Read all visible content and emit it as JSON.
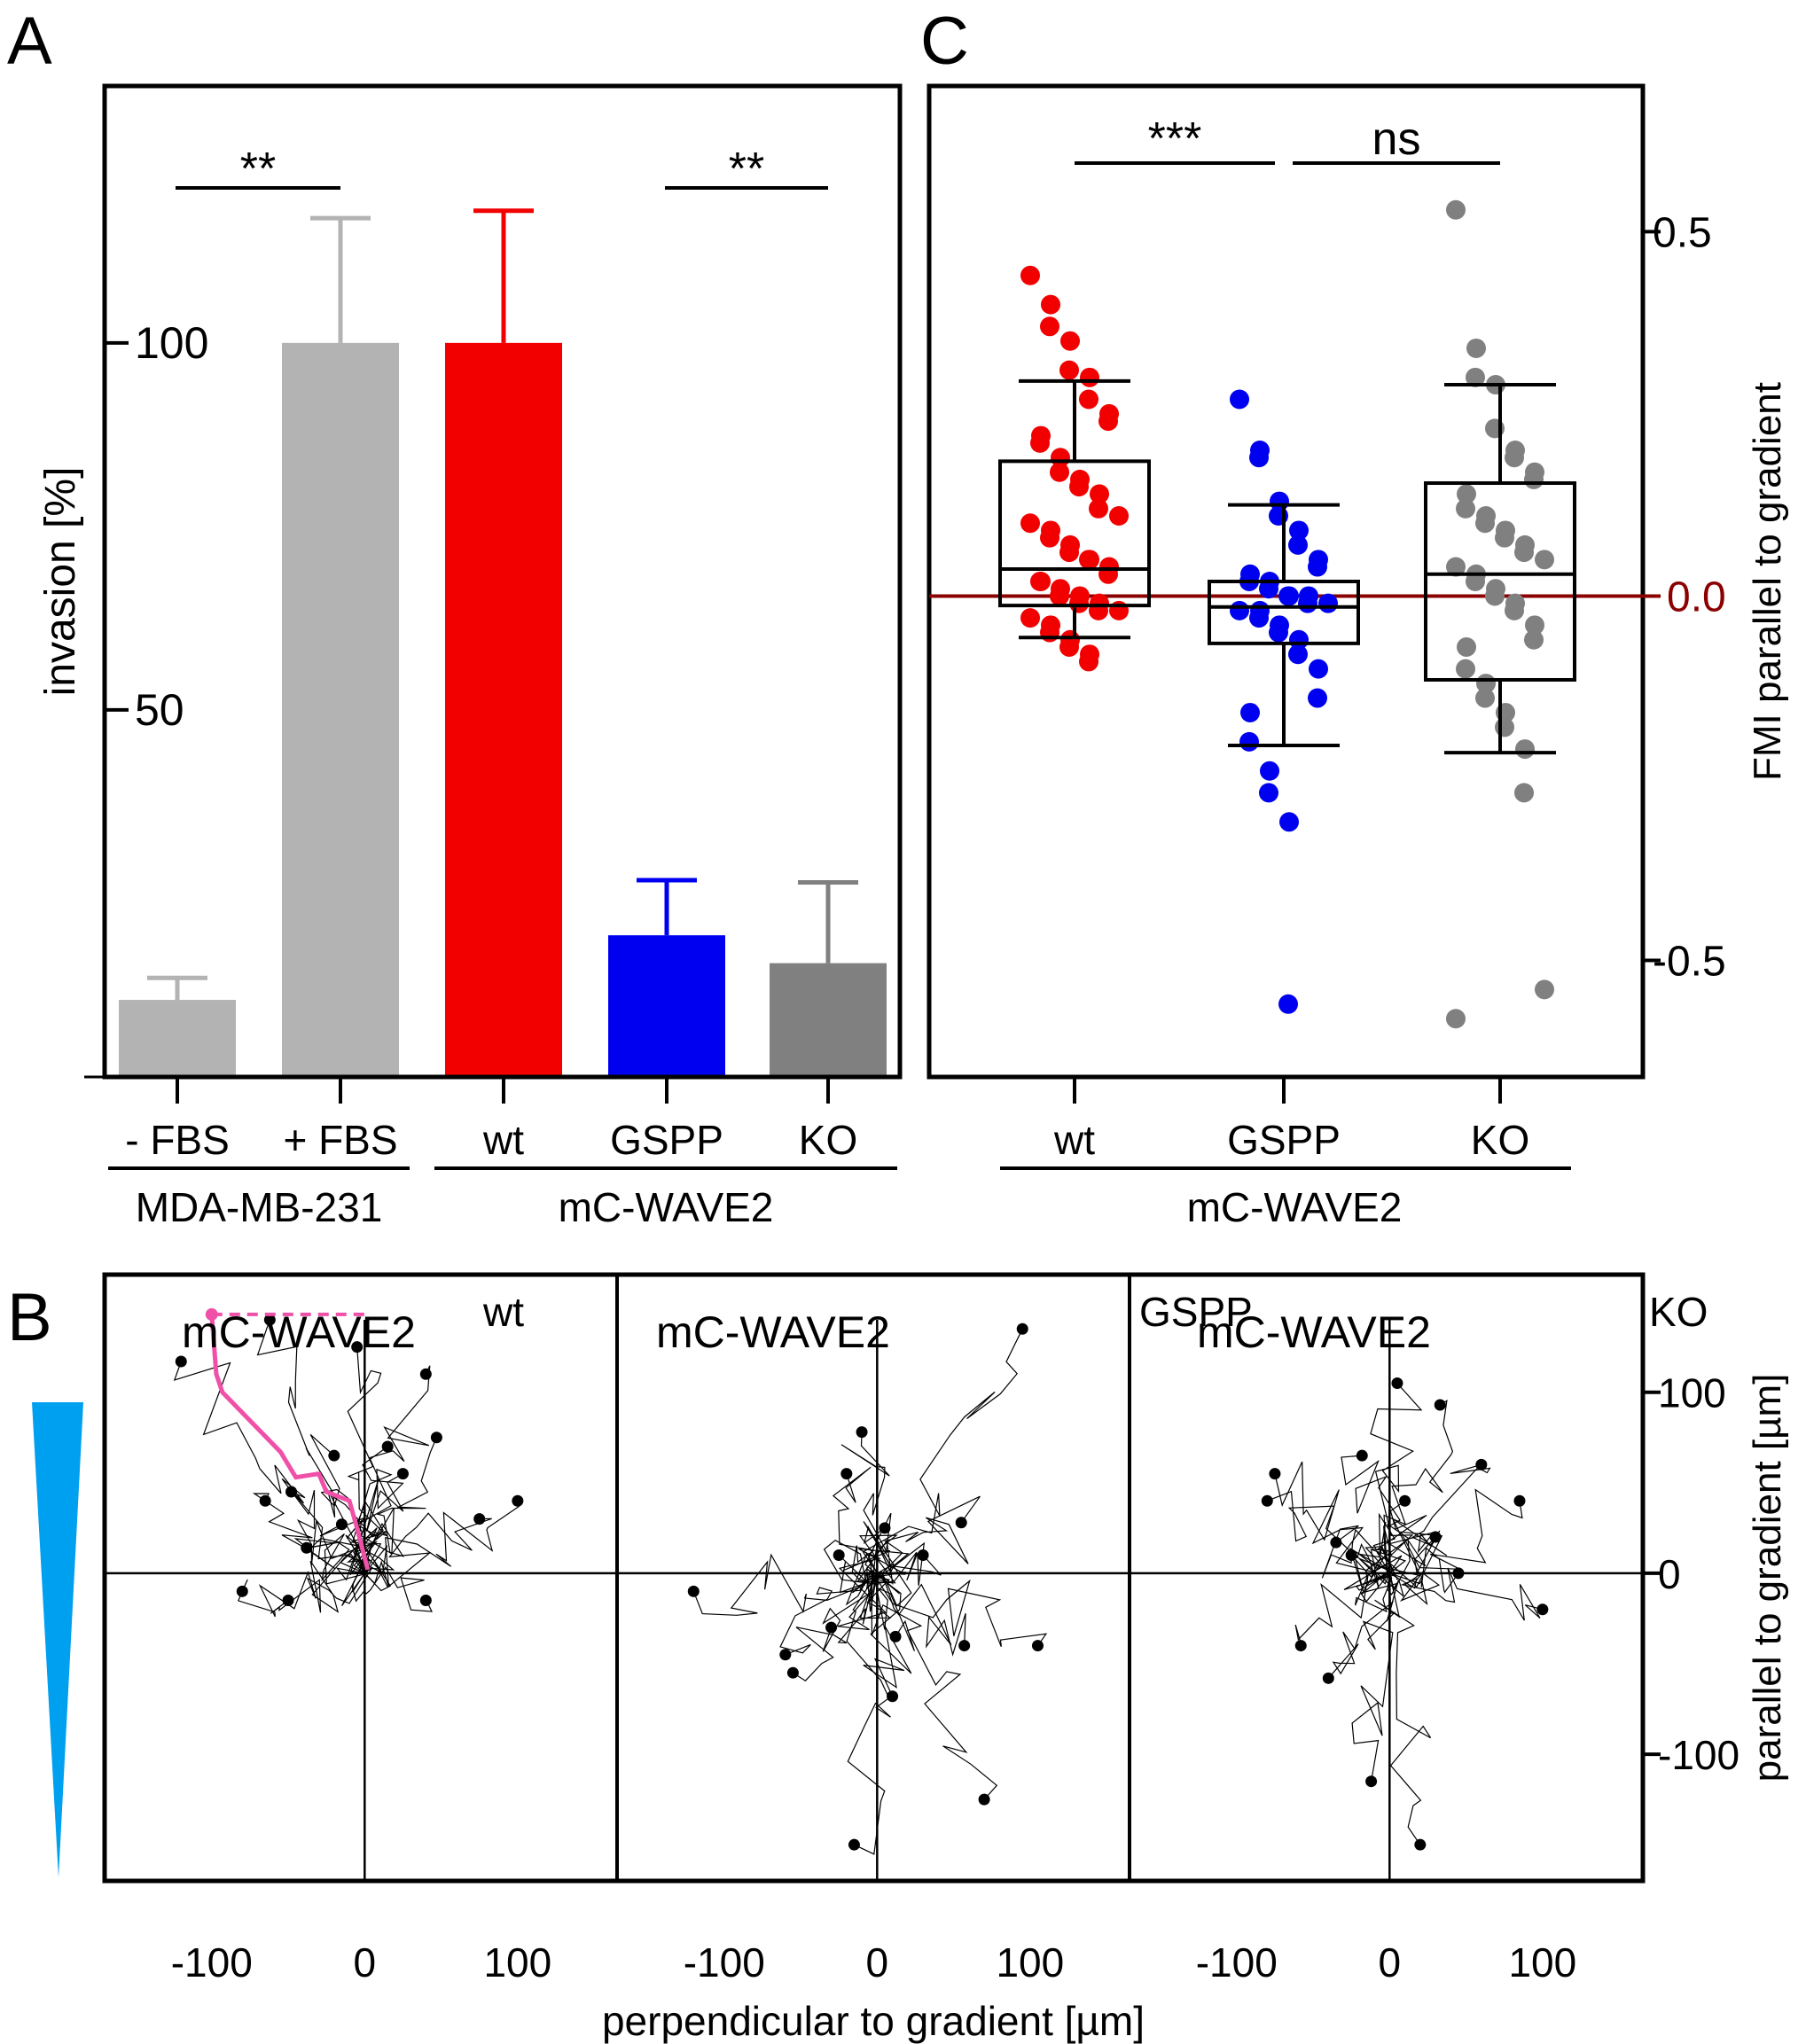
{
  "panel_labels": [
    "A",
    "B",
    "C"
  ],
  "colors": {
    "light_gray": "#b3b3b3",
    "dark_gray": "#808080",
    "red": "#f20000",
    "blue": "#0000f0",
    "dark_red": "#8b0000",
    "magenta": "#f050a8",
    "gradient_cyan": "#00a0f0"
  },
  "chart_data": [
    {
      "panel": "A",
      "type": "bar",
      "ylabel": "invasion [%]",
      "ylim": [
        0,
        135
      ],
      "yticks": [
        "50",
        "100"
      ],
      "categories": [
        "- FBS",
        "+ FBS",
        "wt",
        "GSPP",
        "KO"
      ],
      "values": [
        10.5,
        100,
        100,
        19.3,
        15.5
      ],
      "errors": [
        3,
        17,
        18,
        7.5,
        11
      ],
      "bar_colors": [
        "#b3b3b3",
        "#b3b3b3",
        "#f20000",
        "#0000f0",
        "#808080"
      ],
      "groups": [
        {
          "label": "MDA-MB-231",
          "members": [
            0,
            1
          ]
        },
        {
          "label": "mC-WAVE2",
          "members": [
            2,
            3,
            4
          ]
        }
      ],
      "significance": [
        {
          "between": [
            0,
            1
          ],
          "label": "**"
        },
        {
          "between": [
            3,
            4
          ],
          "label": "**"
        }
      ]
    },
    {
      "panel": "C",
      "type": "scatter",
      "subtype": "box plot with points",
      "ylabel": "FMI parallel to gradient",
      "ylim": [
        -0.66,
        0.7
      ],
      "yticks": [
        "-0.5",
        "0.0",
        "0.5"
      ],
      "reference_line": {
        "y": 0,
        "label": "0.0"
      },
      "categories": [
        "wt",
        "GSPP",
        "KO"
      ],
      "group_label": "mC-WAVE2",
      "significance": [
        {
          "between": [
            0,
            1
          ],
          "label": "***"
        },
        {
          "between": [
            1,
            2
          ],
          "label": "ns"
        }
      ],
      "series": [
        {
          "name": "wt",
          "color": "#f20000",
          "box": {
            "whisker_low": -0.057,
            "q1": -0.013,
            "median": 0.037,
            "q3": 0.185,
            "whisker_high": 0.295
          },
          "points": [
            0.44,
            0.4,
            0.37,
            0.35,
            0.31,
            0.3,
            0.27,
            0.25,
            0.24,
            0.22,
            0.21,
            0.19,
            0.17,
            0.16,
            0.15,
            0.14,
            0.12,
            0.11,
            0.1,
            0.09,
            0.08,
            0.07,
            0.06,
            0.05,
            0.05,
            0.04,
            0.03,
            0.02,
            0.02,
            0.01,
            0.0,
            0.0,
            -0.01,
            -0.01,
            -0.02,
            -0.02,
            -0.03,
            -0.04,
            -0.05,
            -0.06,
            -0.07,
            -0.08,
            -0.09
          ]
        },
        {
          "name": "GSPP",
          "color": "#0000f0",
          "box": {
            "whisker_low": -0.205,
            "q1": -0.065,
            "median": -0.015,
            "q3": 0.02,
            "whisker_high": 0.125
          },
          "points": [
            0.27,
            0.2,
            0.19,
            0.13,
            0.11,
            0.09,
            0.07,
            0.05,
            0.04,
            0.03,
            0.02,
            0.02,
            0.01,
            0.0,
            0.0,
            0.0,
            -0.01,
            -0.01,
            -0.02,
            -0.02,
            -0.03,
            -0.04,
            -0.05,
            -0.06,
            -0.08,
            -0.1,
            -0.14,
            -0.16,
            -0.2,
            -0.24,
            -0.27,
            -0.31,
            -0.56
          ]
        },
        {
          "name": "KO",
          "color": "#808080",
          "box": {
            "whisker_low": -0.215,
            "q1": -0.115,
            "median": 0.03,
            "q3": 0.155,
            "whisker_high": 0.29
          },
          "points": [
            0.53,
            0.34,
            0.3,
            0.29,
            0.23,
            0.2,
            0.19,
            0.17,
            0.16,
            0.14,
            0.12,
            0.11,
            0.1,
            0.09,
            0.08,
            0.07,
            0.06,
            0.05,
            0.04,
            0.03,
            0.02,
            0.01,
            0.0,
            -0.01,
            -0.02,
            -0.04,
            -0.06,
            -0.07,
            -0.1,
            -0.12,
            -0.14,
            -0.16,
            -0.18,
            -0.21,
            -0.27,
            -0.54,
            -0.58
          ]
        }
      ]
    },
    {
      "panel": "B",
      "type": "line",
      "subtype": "cell migration trajectories",
      "xlabel": "perpendicular to gradient [µm]",
      "ylabel": "parallel to gradient [µm]",
      "xlim": [
        -170,
        165
      ],
      "ylim": [
        -170,
        165
      ],
      "xticks": [
        "-100",
        "0",
        "100"
      ],
      "yticks": [
        "-100",
        "0",
        "100"
      ],
      "subpanels": [
        {
          "title": "mC-WAVE2",
          "superscript": "wt",
          "endpoints": [
            [
              -120,
              117
            ],
            [
              -62,
              140
            ],
            [
              -5,
              125
            ],
            [
              40,
              110
            ],
            [
              47,
              75
            ],
            [
              -48,
              45
            ],
            [
              -15,
              27
            ],
            [
              75,
              30
            ],
            [
              100,
              40
            ],
            [
              -38,
              14
            ],
            [
              15,
              70
            ],
            [
              -80,
              -10
            ],
            [
              -50,
              -15
            ],
            [
              40,
              -15
            ],
            [
              -65,
              40
            ],
            [
              -20,
              65
            ],
            [
              25,
              55
            ]
          ],
          "highlight_track": [
            [
              -100,
              143
            ],
            [
              -97,
              110
            ],
            [
              -93,
              100
            ],
            [
              -70,
              80
            ],
            [
              -55,
              67
            ],
            [
              -45,
              53
            ],
            [
              -30,
              55
            ],
            [
              -25,
              45
            ],
            [
              -10,
              40
            ],
            [
              -5,
              25
            ],
            [
              2,
              2
            ]
          ],
          "highlight_reference": [
            [
              -100,
              143
            ],
            [
              2,
              143
            ]
          ]
        },
        {
          "title": "mC-WAVE2",
          "superscript": "GSPP",
          "endpoints": [
            [
              95,
              135
            ],
            [
              -10,
              78
            ],
            [
              -20,
              55
            ],
            [
              55,
              28
            ],
            [
              5,
              25
            ],
            [
              -120,
              -10
            ],
            [
              -60,
              -45
            ],
            [
              -55,
              -55
            ],
            [
              -30,
              -30
            ],
            [
              12,
              -35
            ],
            [
              57,
              -40
            ],
            [
              105,
              -40
            ],
            [
              10,
              -68
            ],
            [
              -15,
              -150
            ],
            [
              70,
              -125
            ],
            [
              -25,
              10
            ],
            [
              30,
              10
            ]
          ],
          "highlight_track": [],
          "highlight_reference": []
        },
        {
          "title": "mC-WAVE2",
          "superscript": "KO",
          "endpoints": [
            [
              5,
              105
            ],
            [
              33,
              93
            ],
            [
              -75,
              55
            ],
            [
              -80,
              40
            ],
            [
              -18,
              65
            ],
            [
              10,
              40
            ],
            [
              60,
              60
            ],
            [
              85,
              40
            ],
            [
              -35,
              17
            ],
            [
              45,
              0
            ],
            [
              -58,
              -40
            ],
            [
              -40,
              -58
            ],
            [
              100,
              -20
            ],
            [
              -12,
              -115
            ],
            [
              20,
              -150
            ],
            [
              -25,
              10
            ],
            [
              30,
              20
            ]
          ],
          "highlight_track": [],
          "highlight_reference": []
        }
      ]
    }
  ]
}
